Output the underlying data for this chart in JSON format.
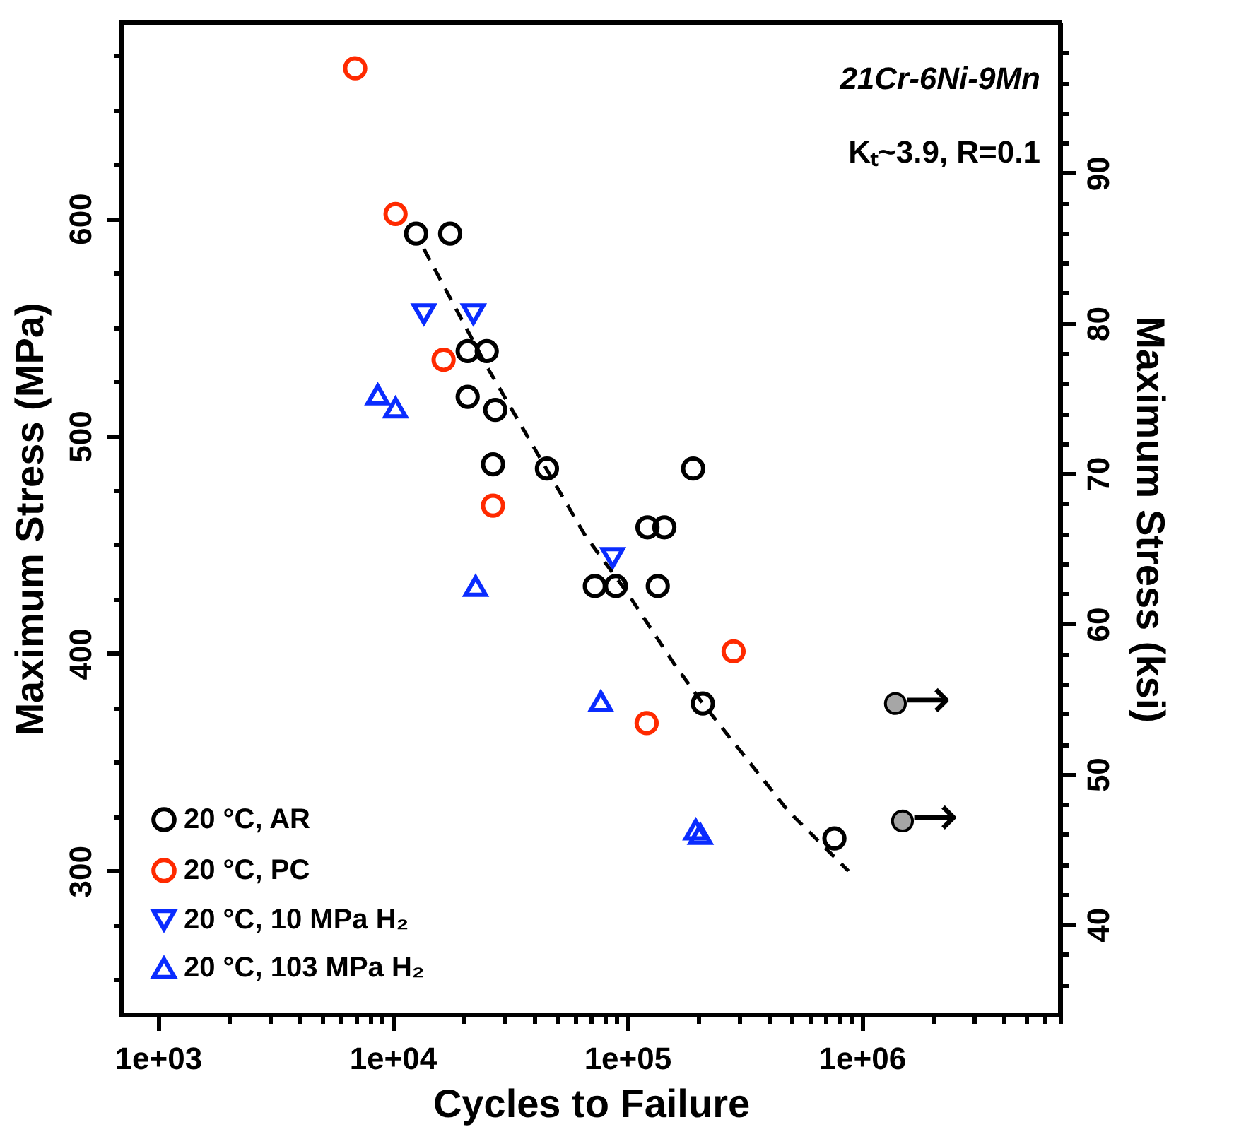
{
  "chart_data": {
    "type": "scatter",
    "xlabel": "Cycles to Failure",
    "ylabel": "Maximum Stress (MPa)",
    "y2label": "Maximum Stress (ksi)",
    "log": "x",
    "legend": "bottom left",
    "grid": false,
    "xlim": [
      700,
      7000000
    ],
    "xticks": [
      {
        "value": 1000,
        "label": "1e+03"
      },
      {
        "value": 2000,
        "label": null
      },
      {
        "value": 3000,
        "label": null
      },
      {
        "value": 4000,
        "label": null
      },
      {
        "value": 5000,
        "label": null
      },
      {
        "value": 6000,
        "label": null
      },
      {
        "value": 7000,
        "label": null
      },
      {
        "value": 8000,
        "label": null
      },
      {
        "value": 9000,
        "label": null
      },
      {
        "value": 10000,
        "label": "1e+04"
      },
      {
        "value": 20000,
        "label": null
      },
      {
        "value": 30000,
        "label": null
      },
      {
        "value": 40000,
        "label": null
      },
      {
        "value": 50000,
        "label": null
      },
      {
        "value": 60000,
        "label": null
      },
      {
        "value": 70000,
        "label": null
      },
      {
        "value": 80000,
        "label": null
      },
      {
        "value": 90000,
        "label": null
      },
      {
        "value": 100000,
        "label": "1e+05"
      },
      {
        "value": 200000,
        "label": null
      },
      {
        "value": 300000,
        "label": null
      },
      {
        "value": 400000,
        "label": null
      },
      {
        "value": 500000,
        "label": null
      },
      {
        "value": 600000,
        "label": null
      },
      {
        "value": 700000,
        "label": null
      },
      {
        "value": 800000,
        "label": null
      },
      {
        "value": 900000,
        "label": null
      },
      {
        "value": 1000000,
        "label": "1e+06"
      },
      {
        "value": 2000000,
        "label": null
      },
      {
        "value": 3000000,
        "label": null
      },
      {
        "value": 4000000,
        "label": null
      },
      {
        "value": 5000000,
        "label": null
      },
      {
        "value": 6000000,
        "label": null
      },
      {
        "value": 7000000,
        "label": null
      }
    ],
    "ylim": [
      234,
      690
    ],
    "yticks": [
      {
        "value": 250,
        "label": null
      },
      {
        "value": 275,
        "label": null
      },
      300,
      {
        "value": 325,
        "label": null
      },
      {
        "value": 350,
        "label": null
      },
      {
        "value": 375,
        "label": null
      },
      400,
      {
        "value": 425,
        "label": null
      },
      {
        "value": 450,
        "label": null
      },
      {
        "value": 475,
        "label": null
      },
      500,
      {
        "value": 525,
        "label": null
      },
      {
        "value": 550,
        "label": null
      },
      {
        "value": 575,
        "label": null
      },
      600,
      {
        "value": 625,
        "label": null
      },
      {
        "value": 650,
        "label": null
      },
      {
        "value": 675,
        "label": null
      }
    ],
    "y2lim": [
      34,
      100
    ],
    "y2ticks": [
      {
        "value": 36,
        "label": null
      },
      {
        "value": 38,
        "label": null
      },
      40,
      {
        "value": 42,
        "label": null
      },
      {
        "value": 44,
        "label": null
      },
      {
        "value": 46,
        "label": null
      },
      {
        "value": 48,
        "label": null
      },
      50,
      {
        "value": 52,
        "label": null
      },
      {
        "value": 54,
        "label": null
      },
      {
        "value": 56,
        "label": null
      },
      {
        "value": 58,
        "label": null
      },
      60,
      {
        "value": 62,
        "label": null
      },
      {
        "value": 64,
        "label": null
      },
      {
        "value": 66,
        "label": null
      },
      {
        "value": 68,
        "label": null
      },
      70,
      {
        "value": 72,
        "label": null
      },
      {
        "value": 74,
        "label": null
      },
      {
        "value": 76,
        "label": null
      },
      {
        "value": 78,
        "label": null
      },
      80,
      {
        "value": 82,
        "label": null
      },
      {
        "value": 84,
        "label": null
      },
      {
        "value": 86,
        "label": null
      },
      {
        "value": 88,
        "label": null
      },
      90,
      {
        "value": 92,
        "label": null
      },
      {
        "value": 94,
        "label": null
      },
      {
        "value": 96,
        "label": null
      },
      {
        "value": 98,
        "label": null
      }
    ],
    "series": [
      {
        "name": "20 °C, AR",
        "color": "#000000",
        "marker": "circle",
        "x": [
          12600,
          17600,
          20900,
          25200,
          20900,
          27400,
          26800,
          45500,
          191000,
          122000,
          144000,
          72800,
          89500,
          135000,
          210000,
          764000
        ],
        "values": [
          593,
          593,
          539,
          539,
          518,
          512,
          487,
          485,
          485,
          458,
          458,
          431,
          431,
          431,
          377,
          315
        ]
      },
      {
        "name": "20 °C, PC",
        "color": "#ff2a00",
        "marker": "circle",
        "x": [
          6930,
          10300,
          16500,
          26800,
          284000,
          121000
        ],
        "values": [
          669,
          602,
          535,
          468,
          401,
          368
        ]
      },
      {
        "name": "20 °C, 10 MPa H₂",
        "color": "#0a2cff",
        "marker": "triangle-down",
        "x": [
          13600,
          22100,
          86700
        ],
        "values": [
          556,
          556,
          444
        ]
      },
      {
        "name": "20 °C, 103 MPa H₂",
        "color": "#0a2cff",
        "marker": "triangle",
        "x": [
          8650,
          10300,
          22600,
          77200,
          196000,
          205000
        ],
        "values": [
          519,
          513,
          431,
          378,
          319,
          317
        ]
      },
      {
        "color": "#a6a6a6",
        "marker": "circle",
        "x": [
          1390000,
          1490000
        ],
        "values": [
          377,
          323
        ]
      },
      {
        "type": "line",
        "color": "#000000",
        "line_style": "dashed",
        "marker": "none",
        "x": [
          13600,
          25200,
          66400,
          100000,
          159000,
          210000,
          482000,
          877000
        ],
        "values": [
          586,
          532,
          454,
          428,
          395,
          377,
          328,
          300
        ]
      }
    ],
    "annotations": [
      "21Cr-6Ni-9Mn",
      "Kₜ~3.9, R=0.1",
      {
        "text": "→",
        "x": 1390000,
        "y": 377
      },
      {
        "text": "→",
        "x": 1490000,
        "y": 323
      }
    ]
  }
}
